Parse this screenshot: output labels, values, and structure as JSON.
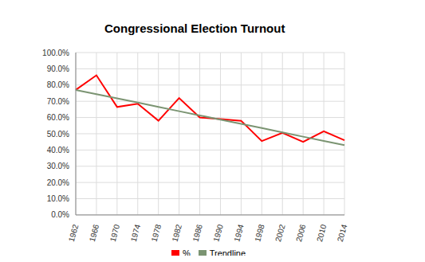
{
  "chart_data": {
    "type": "line",
    "title": "Congressional Election Turnout",
    "categories": [
      "1962",
      "1966",
      "1970",
      "1974",
      "1978",
      "1982",
      "1986",
      "1990",
      "1994",
      "1998",
      "2002",
      "2006",
      "2010",
      "2014"
    ],
    "series": [
      {
        "name": "%",
        "color": "#ff0000",
        "values": [
          77,
          86,
          66.5,
          68.5,
          58,
          72,
          60,
          59,
          58,
          45.5,
          50.5,
          45,
          51.5,
          46
        ]
      },
      {
        "name": "Trendline",
        "color": "#7b9472",
        "values": [
          77,
          74.4,
          71.8,
          69.2,
          66.5,
          63.9,
          61.3,
          58.7,
          56.1,
          53.5,
          50.8,
          48.2,
          45.6,
          43
        ]
      }
    ],
    "ylim": [
      0,
      100
    ],
    "yticks": [
      {
        "value": 0,
        "label": "0.0%"
      },
      {
        "value": 10,
        "label": "10.0%"
      },
      {
        "value": 20,
        "label": "20.0%"
      },
      {
        "value": 30,
        "label": "30.0%"
      },
      {
        "value": 40,
        "label": "40.0%"
      },
      {
        "value": 50,
        "label": "50.0%"
      },
      {
        "value": 60,
        "label": "60.0%"
      },
      {
        "value": 70,
        "label": "70.0%"
      },
      {
        "value": 80,
        "label": "80.0%"
      },
      {
        "value": 90,
        "label": "90.0%"
      },
      {
        "value": 100,
        "label": "100.0%"
      }
    ],
    "grid": true,
    "legend": "bottom"
  }
}
